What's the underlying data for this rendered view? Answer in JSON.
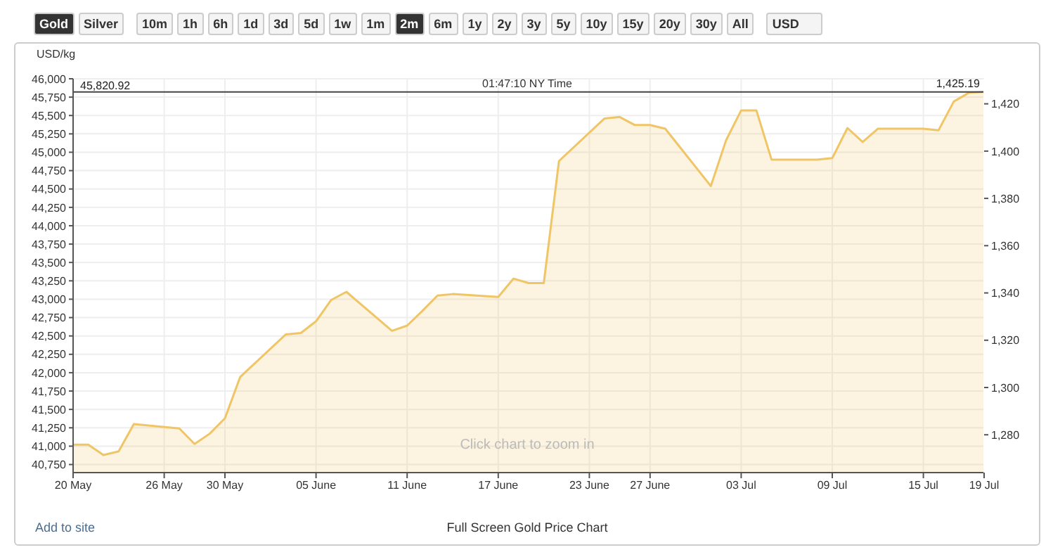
{
  "chart_data": {
    "type": "area",
    "ylabel": "USD/kg",
    "x": [
      "--05-20",
      "--05-21",
      "--05-22",
      "--05-23",
      "--05-24",
      "--05-27",
      "--05-28",
      "--05-29",
      "--05-30",
      "--05-31",
      "--06-03",
      "--06-04",
      "--06-05",
      "--06-06",
      "--06-07",
      "--06-10",
      "--06-11",
      "--06-12",
      "--06-13",
      "--06-14",
      "--06-17",
      "--06-18",
      "--06-19",
      "--06-20",
      "--06-21",
      "--06-24",
      "--06-25",
      "--06-26",
      "--06-27",
      "--06-28",
      "--07-01",
      "--07-02",
      "--07-03",
      "--07-04",
      "--07-05",
      "--07-08",
      "--07-09",
      "--07-10",
      "--07-11",
      "--07-12",
      "--07-15",
      "--07-16",
      "--07-17",
      "--07-18",
      "--07-19"
    ],
    "series": [
      {
        "color": "#f0c566",
        "values": [
          41020,
          41020,
          40880,
          40930,
          41300,
          41240,
          41030,
          41170,
          41380,
          41940,
          42520,
          42540,
          42700,
          42990,
          43100,
          42570,
          42640,
          42840,
          43050,
          43070,
          43030,
          43280,
          43220,
          43220,
          44880,
          45460,
          45480,
          45370,
          45370,
          45320,
          44540,
          45160,
          45570,
          45570,
          44900,
          44900,
          44920,
          45330,
          45140,
          45320,
          45320,
          45300,
          45690,
          45810,
          45820
        ]
      }
    ],
    "xlim": [
      "--05-20",
      "--07-19"
    ],
    "xticks": [
      {
        "value": "--05-20",
        "label": "20 May"
      },
      {
        "value": "--05-26",
        "label": "26 May"
      },
      {
        "value": "--05-30",
        "label": "30 May"
      },
      {
        "value": "--06-05",
        "label": "05 June"
      },
      {
        "value": "--06-11",
        "label": "11 June"
      },
      {
        "value": "--06-17",
        "label": "17 June"
      },
      {
        "value": "--06-23",
        "label": "23 June"
      },
      {
        "value": "--06-27",
        "label": "27 June"
      },
      {
        "value": "--07-03",
        "label": "03 Jul"
      },
      {
        "value": "--07-09",
        "label": "09 Jul"
      },
      {
        "value": "--07-15",
        "label": "15 Jul"
      },
      {
        "value": "--07-19",
        "label": "19 Jul"
      }
    ],
    "ylim": [
      40640,
      46000
    ],
    "yticks": [
      {
        "value": 40750,
        "label": "40,750"
      },
      {
        "value": 41000,
        "label": "41,000"
      },
      {
        "value": 41250,
        "label": "41,250"
      },
      {
        "value": 41500,
        "label": "41,500"
      },
      {
        "value": 41750,
        "label": "41,750"
      },
      {
        "value": 42000,
        "label": "42,000"
      },
      {
        "value": 42250,
        "label": "42,250"
      },
      {
        "value": 42500,
        "label": "42,500"
      },
      {
        "value": 42750,
        "label": "42,750"
      },
      {
        "value": 43000,
        "label": "43,000"
      },
      {
        "value": 43250,
        "label": "43,250"
      },
      {
        "value": 43500,
        "label": "43,500"
      },
      {
        "value": 43750,
        "label": "43,750"
      },
      {
        "value": 44000,
        "label": "44,000"
      },
      {
        "value": 44250,
        "label": "44,250"
      },
      {
        "value": 44500,
        "label": "44,500"
      },
      {
        "value": 44750,
        "label": "44,750"
      },
      {
        "value": 45000,
        "label": "45,000"
      },
      {
        "value": 45250,
        "label": "45,250"
      },
      {
        "value": 45500,
        "label": "45,500"
      },
      {
        "value": 45750,
        "label": "45,750"
      },
      {
        "value": 46000,
        "label": "46,000"
      }
    ],
    "y2lim": [
      1264,
      1430.6
    ],
    "y2ticks": [
      {
        "value": 1280,
        "label": "1,280"
      },
      {
        "value": 1300,
        "label": "1,300"
      },
      {
        "value": 1320,
        "label": "1,320"
      },
      {
        "value": 1340,
        "label": "1,340"
      },
      {
        "value": 1360,
        "label": "1,360"
      },
      {
        "value": 1380,
        "label": "1,380"
      },
      {
        "value": 1400,
        "label": "1,400"
      },
      {
        "value": 1420,
        "label": "1,420"
      }
    ],
    "ref_lines": [
      {
        "axis": "y",
        "value": 45820.92,
        "label": "45,820.92",
        "color": "#444444"
      }
    ],
    "grid": true,
    "annotations": [
      "Gold",
      "Silver",
      "10m",
      "1h",
      "6h",
      "1d",
      "3d",
      "5d",
      "1w",
      "1m",
      "2m",
      "6m",
      "1y",
      "2y",
      "3y",
      "5y",
      "10y",
      "15y",
      "20y",
      "30y",
      "All",
      "USD",
      "01:47:10 NY Time",
      "1,425.19",
      "Click chart to zoom in",
      "Add to site",
      "Full Screen Gold Price Chart"
    ]
  }
}
